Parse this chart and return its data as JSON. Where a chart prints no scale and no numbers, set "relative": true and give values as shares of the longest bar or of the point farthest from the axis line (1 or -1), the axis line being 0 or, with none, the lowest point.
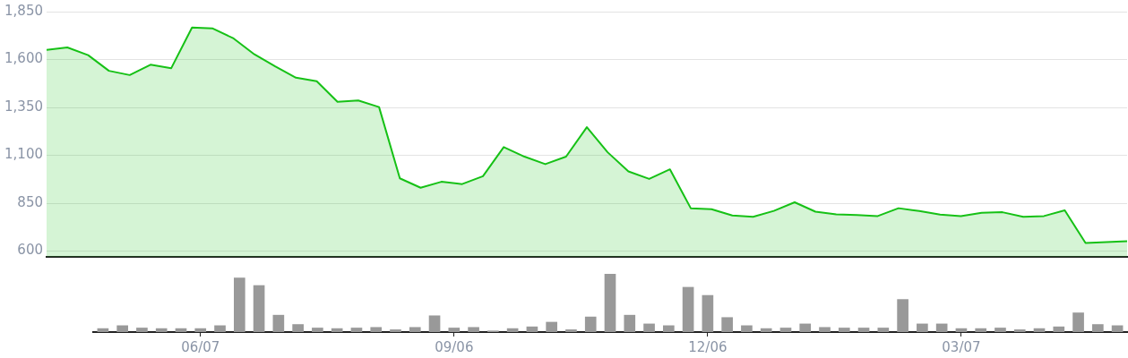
{
  "chart_data": [
    {
      "type": "area",
      "categories": [
        null,
        null,
        null,
        null,
        null,
        null,
        null,
        null,
        null,
        null,
        null,
        null,
        null,
        null,
        null,
        null,
        null,
        null,
        null,
        null,
        null,
        null,
        null,
        null,
        null,
        null,
        null,
        null,
        null,
        null,
        null,
        null,
        null,
        null,
        null,
        null,
        null,
        null,
        null,
        null,
        null,
        null,
        null,
        null,
        null,
        null,
        null,
        null,
        null,
        null,
        null,
        null,
        null
      ],
      "series": [
        {
          "color": "#16c116",
          "values": [
            1650,
            1663,
            1623,
            1541,
            1519,
            1573,
            1555,
            1767,
            1762,
            1710,
            1627,
            1564,
            1505,
            1487,
            1379,
            1386,
            1352,
            980,
            931,
            962,
            950,
            991,
            1143,
            1093,
            1054,
            1093,
            1247,
            1116,
            1016,
            977,
            1027,
            824,
            819,
            786,
            779,
            810,
            855,
            806,
            792,
            788,
            783,
            824,
            809,
            791,
            783,
            800,
            803,
            779,
            783,
            813,
            642,
            647,
            652
          ]
        }
      ],
      "ylim": [
        570,
        1850
      ],
      "yticks": [
        {
          "value": 600,
          "label": "600"
        },
        {
          "value": 850,
          "label": "850"
        },
        {
          "value": 1100,
          "label": "1,100"
        },
        {
          "value": 1350,
          "label": "1,350"
        },
        {
          "value": 1600,
          "label": "1,600"
        },
        {
          "value": 1850,
          "label": "1,850"
        }
      ],
      "grid": "y",
      "marker": "none",
      "tick_labels": "y"
    },
    {
      "type": "bar",
      "categories": [
        null,
        null,
        null,
        null,
        null,
        "06/07",
        null,
        null,
        null,
        null,
        null,
        null,
        null,
        null,
        null,
        null,
        null,
        null,
        "09/06",
        null,
        null,
        null,
        null,
        null,
        null,
        null,
        null,
        null,
        null,
        null,
        null,
        "12/06",
        null,
        null,
        null,
        null,
        null,
        null,
        null,
        null,
        null,
        null,
        null,
        null,
        "03/07",
        null,
        null,
        null,
        null,
        null,
        null,
        null,
        null
      ],
      "values": [
        0.06,
        0.11,
        0.07,
        0.06,
        0.06,
        0.06,
        0.11,
        0.93,
        0.8,
        0.29,
        0.13,
        0.07,
        0.06,
        0.07,
        0.08,
        0.04,
        0.08,
        0.28,
        0.07,
        0.08,
        0.02,
        0.06,
        0.09,
        0.17,
        0.04,
        0.26,
        1,
        0.29,
        0.14,
        0.11,
        0.77,
        0.63,
        0.25,
        0.11,
        0.06,
        0.07,
        0.14,
        0.08,
        0.07,
        0.07,
        0.07,
        0.56,
        0.14,
        0.14,
        0.06,
        0.06,
        0.07,
        0.04,
        0.06,
        0.09,
        0.33,
        0.13,
        0.11
      ],
      "color": "#999999",
      "relative": true,
      "tick_labels": "x"
    }
  ]
}
